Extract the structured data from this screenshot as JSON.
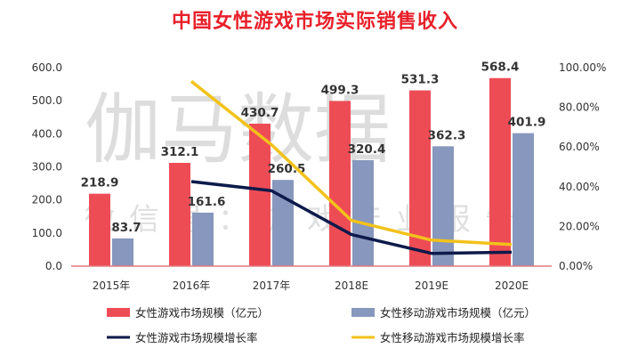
{
  "chart_data": {
    "type": "bar",
    "title": "中国女性游戏市场实际销售收入",
    "categories": [
      "2015年",
      "2016年",
      "2017年",
      "2018E",
      "2019E",
      "2020E"
    ],
    "y_left": {
      "ylim": [
        0,
        600
      ],
      "ticks": [
        "0.0",
        "100.0",
        "200.0",
        "300.0",
        "400.0",
        "500.0",
        "600.0"
      ]
    },
    "y_right": {
      "ylim": [
        0,
        100
      ],
      "ticks": [
        "0.00%",
        "20.00%",
        "40.00%",
        "60.00%",
        "80.00%",
        "100.00%"
      ]
    },
    "series": [
      {
        "name": "女性游戏市场规模（亿元）",
        "type": "bar",
        "axis": "left",
        "color": "#ee4c55",
        "values": [
          218.9,
          312.1,
          430.7,
          499.3,
          531.3,
          568.4
        ],
        "labels": [
          "218.9",
          "312.1",
          "430.7",
          "499.3",
          "531.3",
          "568.4"
        ]
      },
      {
        "name": "女性移动游戏市场规模（亿元）",
        "type": "bar",
        "axis": "left",
        "color": "#8797bd",
        "values": [
          83.7,
          161.6,
          260.5,
          320.4,
          362.3,
          401.9
        ],
        "labels": [
          "83.7",
          "161.6",
          "260.5",
          "320.4",
          "362.3",
          "401.9"
        ]
      },
      {
        "name": "女性游戏市场规模增长率",
        "type": "line",
        "axis": "right",
        "color": "#0d1a4a",
        "values": [
          null,
          42.6,
          38.0,
          15.9,
          6.4,
          7.0
        ]
      },
      {
        "name": "女性移动游戏市场规模增长率",
        "type": "line",
        "axis": "right",
        "color": "#f2c21b",
        "values": [
          null,
          93.1,
          61.2,
          23.0,
          13.1,
          10.9
        ]
      }
    ],
    "legend": "bottom",
    "grid": false
  },
  "watermark": {
    "main": "伽马数据",
    "sub": "微信号：游戏产业报告"
  }
}
